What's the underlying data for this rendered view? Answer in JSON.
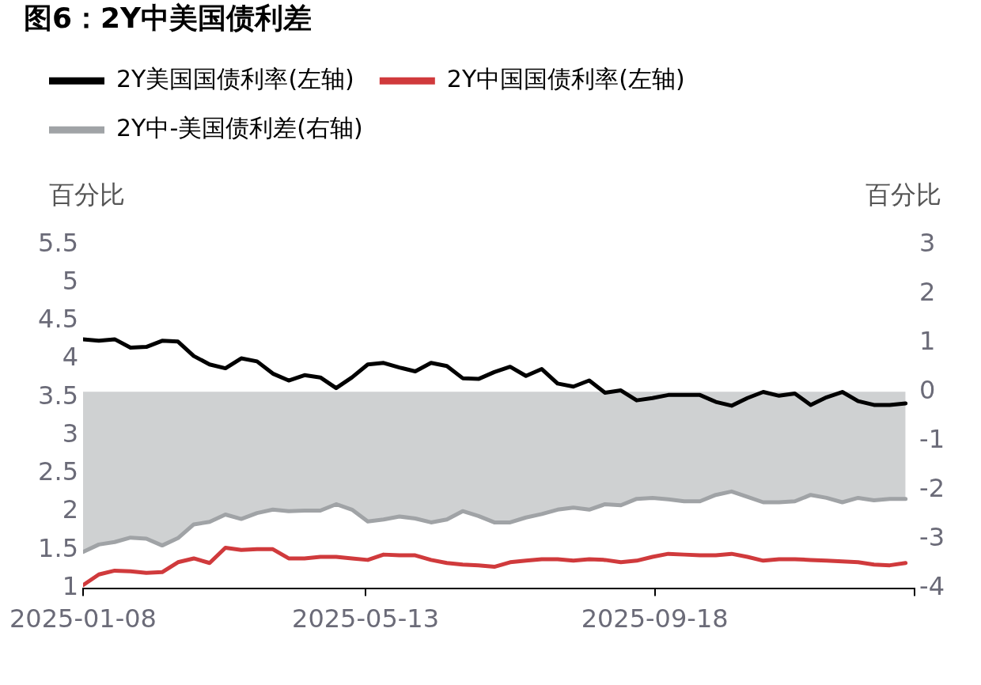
{
  "chart_data": {
    "type": "line",
    "title": "图6：2Y中美国债利差",
    "ylabel": "百分比",
    "y2label": "百分比",
    "x": [
      "2025-01-08",
      "2025-01-15",
      "2025-01-22",
      "2025-01-29",
      "2025-02-05",
      "2025-02-12",
      "2025-02-19",
      "2025-02-26",
      "2025-03-05",
      "2025-03-12",
      "2025-03-19",
      "2025-03-26",
      "2025-04-02",
      "2025-04-09",
      "2025-04-16",
      "2025-04-23",
      "2025-04-30",
      "2025-05-07",
      "2025-05-14",
      "2025-05-21",
      "2025-05-28",
      "2025-06-04",
      "2025-06-11",
      "2025-06-18",
      "2025-06-25",
      "2025-07-02",
      "2025-07-09",
      "2025-07-16",
      "2025-07-23",
      "2025-07-30",
      "2025-08-06",
      "2025-08-13",
      "2025-08-20",
      "2025-08-27",
      "2025-09-03",
      "2025-09-10",
      "2025-09-17",
      "2025-09-24",
      "2025-10-01",
      "2025-10-08",
      "2025-10-15",
      "2025-10-22",
      "2025-10-29",
      "2025-11-05",
      "2025-11-12",
      "2025-11-19",
      "2025-11-26",
      "2025-12-03",
      "2025-12-10",
      "2025-12-17",
      "2025-12-24",
      "2025-12-31",
      "2026-01-07"
    ],
    "series": [
      {
        "name": "2Y美国国债利率(左轴)",
        "color": "#000000",
        "values": [
          4.26,
          4.24,
          4.26,
          4.15,
          4.16,
          4.24,
          4.23,
          4.04,
          3.93,
          3.88,
          4.01,
          3.97,
          3.81,
          3.72,
          3.79,
          3.76,
          3.62,
          3.76,
          3.93,
          3.95,
          3.89,
          3.84,
          3.95,
          3.91,
          3.75,
          3.74,
          3.83,
          3.9,
          3.78,
          3.87,
          3.68,
          3.64,
          3.72,
          3.56,
          3.59,
          3.46,
          3.49,
          3.53,
          3.53,
          3.53,
          3.44,
          3.39,
          3.49,
          3.57,
          3.52,
          3.55,
          3.4,
          3.5,
          3.57,
          3.45,
          3.4,
          3.4,
          3.42
        ]
      },
      {
        "name": "2Y中国国债利率(左轴)",
        "color": "#d03a3c",
        "values": [
          1.04,
          1.18,
          1.23,
          1.22,
          1.2,
          1.21,
          1.34,
          1.39,
          1.33,
          1.53,
          1.5,
          1.51,
          1.51,
          1.39,
          1.39,
          1.41,
          1.41,
          1.39,
          1.37,
          1.44,
          1.43,
          1.43,
          1.37,
          1.33,
          1.31,
          1.3,
          1.28,
          1.34,
          1.36,
          1.38,
          1.38,
          1.36,
          1.38,
          1.37,
          1.34,
          1.36,
          1.41,
          1.45,
          1.44,
          1.43,
          1.43,
          1.45,
          1.41,
          1.36,
          1.38,
          1.38,
          1.37,
          1.36,
          1.35,
          1.34,
          1.31,
          1.3,
          1.33
        ]
      },
      {
        "name": "2Y中-美国债利差(右轴)",
        "type": "area",
        "axis": "y2",
        "color": "#a0a3a6",
        "values": [
          -3.26,
          -3.11,
          -3.06,
          -2.97,
          -2.99,
          -3.13,
          -2.98,
          -2.7,
          -2.65,
          -2.5,
          -2.59,
          -2.47,
          -2.4,
          -2.43,
          -2.42,
          -2.42,
          -2.29,
          -2.4,
          -2.64,
          -2.6,
          -2.54,
          -2.58,
          -2.66,
          -2.6,
          -2.43,
          -2.53,
          -2.66,
          -2.66,
          -2.56,
          -2.49,
          -2.4,
          -2.36,
          -2.4,
          -2.29,
          -2.31,
          -2.18,
          -2.16,
          -2.19,
          -2.23,
          -2.23,
          -2.1,
          -2.03,
          -2.14,
          -2.25,
          -2.25,
          -2.23,
          -2.1,
          -2.16,
          -2.25,
          -2.16,
          -2.21,
          -2.18,
          -2.18
        ]
      }
    ],
    "xlim": [
      "2025-01-08",
      "2026-01-11"
    ],
    "xticks": [
      {
        "value": "2025-01-08",
        "label": "2025-01-08"
      },
      {
        "value": "2025-05-13",
        "label": "2025-05-13"
      },
      {
        "value": "2025-09-18",
        "label": "2025-09-18"
      },
      {
        "value": "2026-01-11",
        "label": null
      }
    ],
    "ylim": [
      1,
      5.5
    ],
    "yticks": [
      1,
      1.5,
      2,
      2.5,
      3,
      3.5,
      4,
      4.5,
      5,
      5.5
    ],
    "y2lim": [
      -4,
      3
    ],
    "y2ticks": [
      -4,
      -3,
      -2,
      -1,
      0,
      1,
      2,
      3
    ],
    "legend": "top left",
    "marker": "none",
    "grid": false
  }
}
